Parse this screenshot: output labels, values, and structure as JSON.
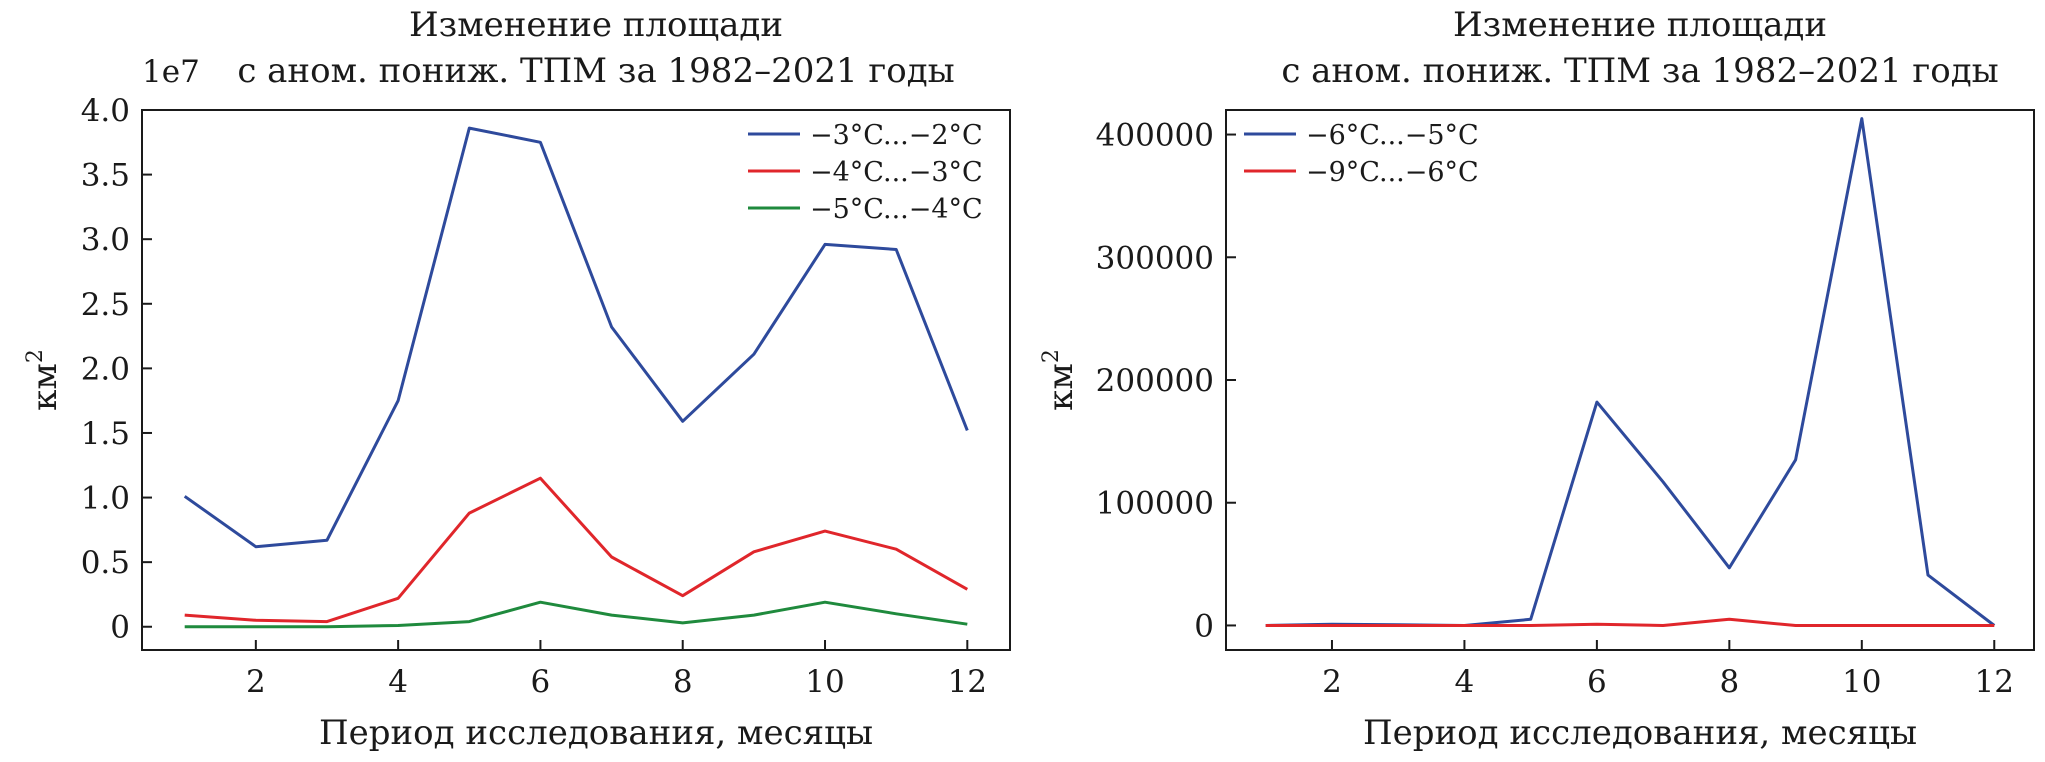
{
  "chart_data": [
    {
      "type": "line",
      "title_line1": "Изменение площади",
      "title_line2": "с аном. пониж. ТПМ за 1982–2021 годы",
      "offset_text": "1e7",
      "xlabel": "Период исследования, месяцы",
      "ylabel": "км",
      "ylabel_sup": "2",
      "xlim": [
        0.4,
        12.6
      ],
      "ylim": [
        -0.18,
        4.0
      ],
      "x_ticks": [
        2,
        4,
        6,
        8,
        10,
        12
      ],
      "x_tick_labels": [
        "2",
        "4",
        "6",
        "8",
        "10",
        "12"
      ],
      "y_ticks": [
        0,
        0.5,
        1.0,
        1.5,
        2.0,
        2.5,
        3.0,
        3.5,
        4.0
      ],
      "y_tick_labels": [
        "0",
        "0.5",
        "1.0",
        "1.5",
        "2.0",
        "2.5",
        "3.0",
        "3.5",
        "4.0"
      ],
      "legend_position": "top-right",
      "x": [
        1,
        2,
        3,
        4,
        5,
        6,
        7,
        8,
        9,
        10,
        11,
        12
      ],
      "series": [
        {
          "name": "−3°C...−2°C",
          "color": "#2e4a9c",
          "values": [
            1.01,
            0.62,
            0.67,
            1.75,
            3.86,
            3.75,
            2.32,
            1.59,
            2.11,
            2.96,
            2.92,
            1.52
          ]
        },
        {
          "name": "−4°C...−3°C",
          "color": "#e0262b",
          "values": [
            0.09,
            0.05,
            0.04,
            0.22,
            0.88,
            1.15,
            0.54,
            0.24,
            0.58,
            0.74,
            0.6,
            0.29
          ]
        },
        {
          "name": "−5°C...−4°C",
          "color": "#1f8a3d",
          "values": [
            0.0,
            0.0,
            0.0,
            0.01,
            0.04,
            0.19,
            0.09,
            0.03,
            0.09,
            0.19,
            0.1,
            0.02
          ]
        }
      ]
    },
    {
      "type": "line",
      "title_line1": "Изменение площади",
      "title_line2": "с аном. пониж. ТПМ за 1982–2021 годы",
      "offset_text": "",
      "xlabel": "Период исследования, месяцы",
      "ylabel": "км",
      "ylabel_sup": "2",
      "xlim": [
        0.4,
        12.6
      ],
      "ylim": [
        -20000,
        420000
      ],
      "x_ticks": [
        2,
        4,
        6,
        8,
        10,
        12
      ],
      "x_tick_labels": [
        "2",
        "4",
        "6",
        "8",
        "10",
        "12"
      ],
      "y_ticks": [
        0,
        100000,
        200000,
        300000,
        400000
      ],
      "y_tick_labels": [
        "0",
        "100000",
        "200000",
        "300000",
        "400000"
      ],
      "legend_position": "top-left",
      "x": [
        1,
        2,
        3,
        4,
        5,
        6,
        7,
        8,
        9,
        10,
        11,
        12
      ],
      "series": [
        {
          "name": "−6°C...−5°C",
          "color": "#2e4a9c",
          "values": [
            0,
            1000,
            500,
            0,
            5000,
            182000,
            117000,
            47000,
            135000,
            413000,
            41000,
            0
          ]
        },
        {
          "name": "−9°C...−6°C",
          "color": "#e0262b",
          "values": [
            0,
            0,
            0,
            0,
            0,
            1000,
            0,
            5000,
            0,
            0,
            0,
            0
          ]
        }
      ]
    }
  ]
}
